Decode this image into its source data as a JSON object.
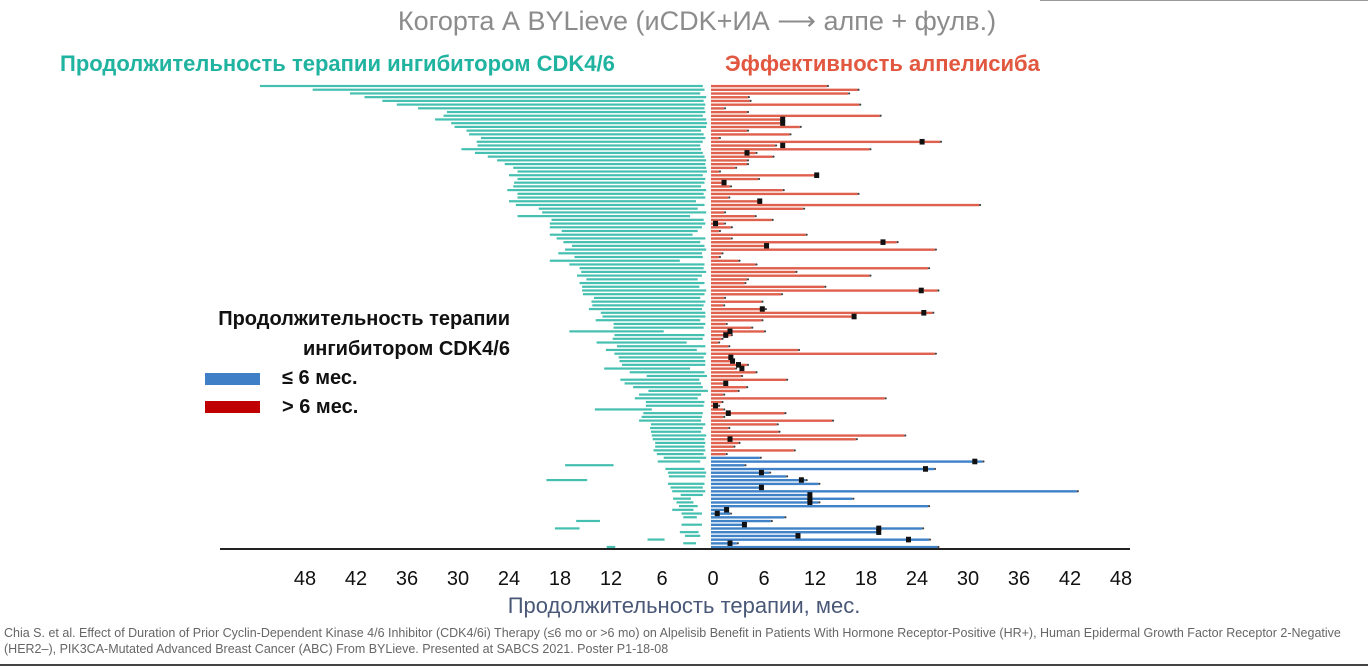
{
  "title": "Когорта А BYLieve (иCDK+ИА ⟶ алпе + фулв.)",
  "header_left": "Продолжительность терапии ингибитором CDK4/6",
  "header_right": "Эффективность алпелисиба",
  "legend": {
    "title_line1": "Продолжительность терапии",
    "title_line2": "ингибитором CDK4/6",
    "items": [
      {
        "label": "≤ 6 мес.",
        "color": "#3f7fc6"
      },
      {
        "label": "> 6 мес.",
        "color": "#c00000"
      }
    ]
  },
  "citation": "Chia S. et al. Effect of Duration of Prior Cyclin-Dependent Kinase 4/6 Inhibitor (CDK4/6i) Therapy (≤6 mo or >6 mo) on Alpelisib Benefit in Patients With Hormone Receptor-Positive (HR+), Human Epidermal Growth Factor Receptor 2-Negative (HER2–), PIK3CA-Mutated Advanced Breast Cancer (ABC) From BYLieve. Presented at SABCS 2021. Poster P1-18-08",
  "chart_data": {
    "type": "swimmer",
    "xlabel": "Продолжительность терапии, мес.",
    "x_tick_labels": [
      "48",
      "42",
      "36",
      "30",
      "24",
      "18",
      "12",
      "6",
      "0",
      "6",
      "12",
      "18",
      "24",
      "30",
      "36",
      "42",
      "48"
    ],
    "x_tick_values": [
      -48,
      -42,
      -36,
      -30,
      -24,
      -18,
      -12,
      -6,
      0,
      6,
      12,
      18,
      24,
      30,
      36,
      42,
      48
    ],
    "xlim": [
      -58,
      49
    ],
    "colors": {
      "cdk46i": "#45c0b0",
      "gt6": "#e0604e",
      "le6": "#3f82c8",
      "event": "#111111"
    },
    "series": [
      {
        "name": "> 6 мес.",
        "cdk46i_from": [
          53.3,
          47.1,
          42.7,
          41,
          38.9,
          37.2,
          34.7,
          31.3,
          31.7,
          32.7,
          30.8,
          30.4,
          29,
          28.7,
          27.3,
          27.8,
          27.7,
          29.6,
          28,
          26.5,
          25.4,
          24.5,
          23.5,
          23,
          24,
          23,
          23.4,
          23.5,
          24.2,
          23,
          23,
          24,
          23.2,
          20.5,
          20.1,
          23,
          19,
          19.2,
          19.2,
          17.8,
          19.2,
          18.4,
          17.6,
          16.6,
          17.4,
          18.2,
          16.3,
          19.2,
          16.9,
          15.7,
          15.5,
          16,
          14.9,
          15.7,
          15.4,
          15.4,
          15.3,
          14,
          14.3,
          14.2,
          14.6,
          13.2,
          13,
          13.8,
          11.7,
          11.7,
          16.9,
          11.6,
          11.8,
          13.7,
          11.3,
          12.6,
          11.6,
          11.1,
          11,
          10.7,
          12.8,
          9.8,
          7.8,
          10.9,
          10.4,
          9.4,
          7.6,
          8.7,
          9.2,
          7.9,
          7.9,
          13.9,
          8.2,
          8.4,
          8.7,
          7.3,
          7.4,
          7.3,
          7.2,
          7.1,
          6.8,
          6.8,
          7,
          6.6
        ],
        "cdk46i_to": [
          1.2,
          1,
          1.5,
          0.8,
          1.1,
          0.9,
          1,
          0.9,
          1.2,
          0.8,
          0.7,
          0.8,
          1.4,
          1.1,
          0.9,
          1.2,
          1.5,
          1.4,
          1.2,
          1,
          0.8,
          0.9,
          0.8,
          0.7,
          1.2,
          0.9,
          1,
          1.4,
          0.8,
          1.1,
          0.9,
          2,
          1,
          1.8,
          0.8,
          2.7,
          1.1,
          0.9,
          1.3,
          1.8,
          2.4,
          0.9,
          1.5,
          1,
          0.8,
          1.3,
          1.2,
          3.9,
          1,
          1.1,
          0.8,
          1.3,
          1.8,
          1,
          1.6,
          0.8,
          1,
          1.5,
          0.9,
          1.1,
          1.3,
          0.9,
          0.9,
          1.5,
          0.9,
          1.1,
          5.8,
          1,
          1.2,
          3.1,
          0.9,
          1.9,
          0.8,
          1.1,
          0.9,
          0.9,
          2.7,
          1,
          0.7,
          1.6,
          1.4,
          1.2,
          0.6,
          1.4,
          1.8,
          1,
          1.1,
          7.2,
          1.2,
          1.3,
          1.4,
          0.9,
          1.2,
          1.4,
          0.8,
          1,
          0.9,
          1,
          0.9,
          1.1
        ],
        "alpelisib": [
          13.4,
          17,
          15.9,
          4.1,
          4.3,
          17.2,
          1.3,
          4,
          19.6,
          8.2,
          8.2,
          10.2,
          4,
          9,
          0.7,
          26.7,
          7.3,
          18.4,
          5,
          7,
          4,
          4,
          2.6,
          0.7,
          12.2,
          5.3,
          1.3,
          2,
          8.2,
          17,
          1.8,
          5.5,
          31.3,
          10.6,
          1.3,
          4.9,
          6.9,
          1.3,
          2.1,
          0.7,
          10.9,
          2.1,
          21.6,
          6.3,
          26.1,
          1,
          0.7,
          3,
          5,
          25.3,
          9.7,
          18.4,
          4,
          3.7,
          13.1,
          26.4,
          8,
          1.3,
          5.7,
          1.2,
          6.1,
          25.8,
          16.6,
          5.7,
          1.5,
          4.5,
          6,
          2.1,
          1,
          0.6,
          1.8,
          10,
          26.1,
          2.1,
          2.1,
          4,
          2.6,
          5,
          3.3,
          8.6,
          1.2,
          3.9,
          2.9,
          1.2,
          20.2,
          1,
          0.6,
          1.2,
          8.4,
          1.2,
          14,
          7.5,
          1.8,
          7.7,
          22.5,
          16.8,
          3,
          2.4,
          9.5,
          1.5
        ],
        "event": [
          null,
          null,
          null,
          null,
          null,
          null,
          null,
          null,
          null,
          8.2,
          8.2,
          null,
          null,
          null,
          null,
          24.6,
          8.2,
          null,
          4,
          null,
          null,
          null,
          null,
          null,
          12.2,
          null,
          1.3,
          null,
          null,
          null,
          null,
          5.5,
          null,
          null,
          null,
          null,
          null,
          0.3,
          null,
          null,
          null,
          null,
          20,
          6.3,
          null,
          null,
          null,
          null,
          null,
          null,
          null,
          null,
          null,
          null,
          null,
          24.5,
          null,
          null,
          null,
          null,
          5.8,
          24.8,
          16.6,
          null,
          null,
          null,
          2,
          1.5,
          null,
          null,
          null,
          null,
          null,
          2.1,
          2.3,
          3,
          3.4,
          null,
          null,
          null,
          1.5,
          null,
          null,
          null,
          null,
          null,
          0.3,
          null,
          1.8,
          null,
          null,
          null,
          null,
          null,
          null,
          2,
          null,
          null,
          null,
          null
        ]
      },
      {
        "name": "≤ 6 мес.",
        "cdk46i_from": [
          5.8,
          6.5,
          17.4,
          5.6,
          5.3,
          5.2,
          19.6,
          5.3,
          5,
          4.8,
          3.8,
          4.7,
          4.3,
          4,
          4.8,
          3.7,
          3.5,
          16.1,
          3.7,
          18.6,
          3.9,
          3.3,
          7.7,
          3.5,
          12.5
        ],
        "cdk46i_to": [
          0.8,
          1.5,
          11.7,
          1,
          0.8,
          0.9,
          14.8,
          1,
          1.2,
          0.9,
          1.2,
          2.6,
          2.3,
          1.8,
          2.3,
          1.3,
          1.9,
          13.3,
          1.3,
          15.7,
          1.7,
          1.5,
          5.7,
          2,
          11.5
        ],
        "alpelisib": [
          5.5,
          31.7,
          3.7,
          26,
          6.6,
          8.6,
          10.9,
          12.4,
          5.7,
          42.8,
          11.4,
          16.4,
          12.4,
          25.3,
          1.6,
          2,
          8.4,
          6.8,
          3.7,
          24.6,
          19.5,
          10,
          25.4,
          2.8,
          26.4
        ],
        "event": [
          null,
          30.8,
          null,
          25,
          5.7,
          null,
          10.4,
          null,
          5.7,
          null,
          11.4,
          11.4,
          11.4,
          null,
          1.6,
          0.5,
          null,
          null,
          3.7,
          19.5,
          19.5,
          10,
          23,
          2,
          null
        ]
      }
    ]
  }
}
